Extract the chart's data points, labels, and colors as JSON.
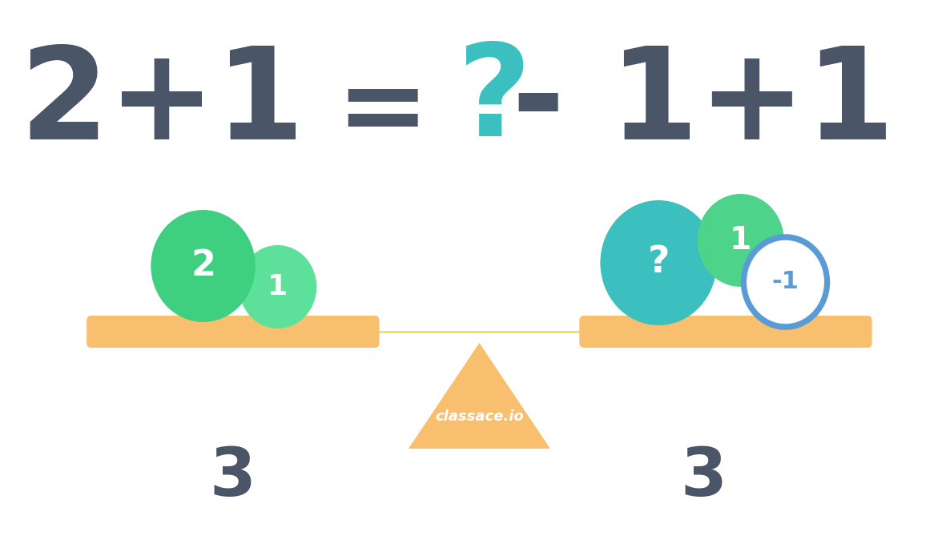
{
  "title_color": "#4a5568",
  "title_question_color": "#3bbfbf",
  "left_ball1_color": "#3ecf80",
  "left_ball1_label": "2",
  "left_ball2_color": "#5de09a",
  "left_ball2_label": "1",
  "right_ball1_color": "#3bbfbf",
  "right_ball1_label": "?",
  "right_ball2_color": "#4dd48a",
  "right_ball2_label": "1",
  "right_ball3_color": "#ffffff",
  "right_ball3_label": "-1",
  "right_ball3_border": "#5b9bd5",
  "beam_color": "#f8bf6e",
  "beam_shadow_color": "#f0e080",
  "triangle_color": "#f8bf6e",
  "left_sum": "3",
  "right_sum": "3",
  "sum_color": "#4a5568",
  "watermark": "classace.io",
  "watermark_color": "#ffffff",
  "background_color": "#ffffff"
}
